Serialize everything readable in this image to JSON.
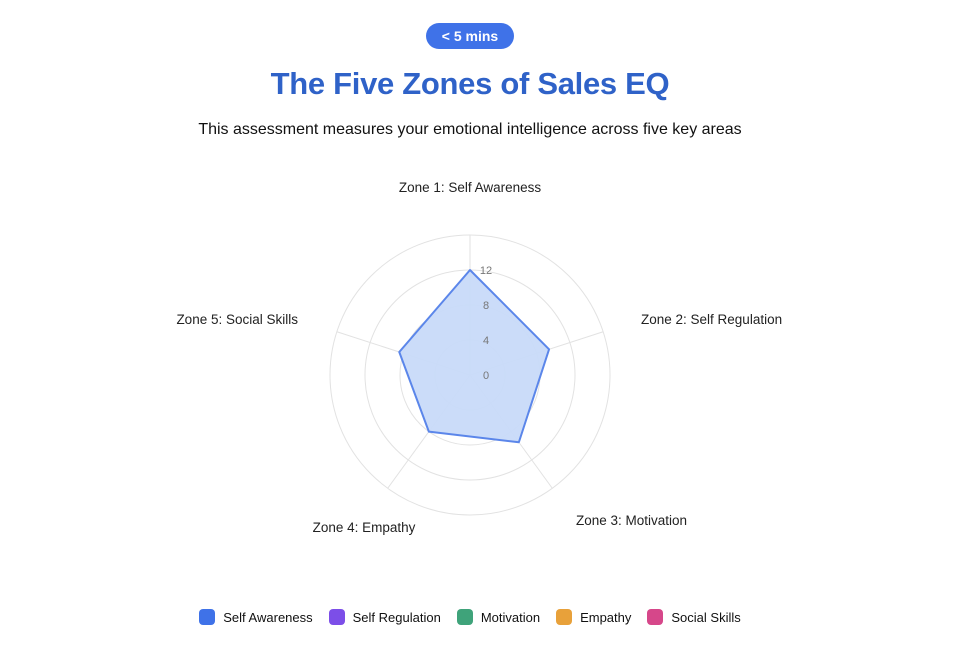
{
  "header": {
    "badge": "< 5 mins",
    "title": "The Five Zones of Sales EQ",
    "subtitle": "This assessment measures your emotional intelligence across five key areas"
  },
  "chart_data": {
    "type": "radar",
    "axes": [
      "Zone 1: Self Awareness",
      "Zone 2: Self Regulation",
      "Zone 3: Motivation",
      "Zone 4: Empathy",
      "Zone 5: Social Skills"
    ],
    "values": [
      12,
      9.5,
      9.5,
      8,
      8.5
    ],
    "ticks": [
      "0",
      "4",
      "8",
      "12"
    ],
    "range": [
      0,
      16
    ],
    "fill_color": "#c8daf9",
    "line_color": "#5b86ea",
    "legend": [
      {
        "label": "Self Awareness",
        "color": "#3f72e8"
      },
      {
        "label": "Self Regulation",
        "color": "#7c4ee8"
      },
      {
        "label": "Motivation",
        "color": "#3fa37a"
      },
      {
        "label": "Empathy",
        "color": "#e8a13a"
      },
      {
        "label": "Social Skills",
        "color": "#d6478a"
      }
    ]
  }
}
